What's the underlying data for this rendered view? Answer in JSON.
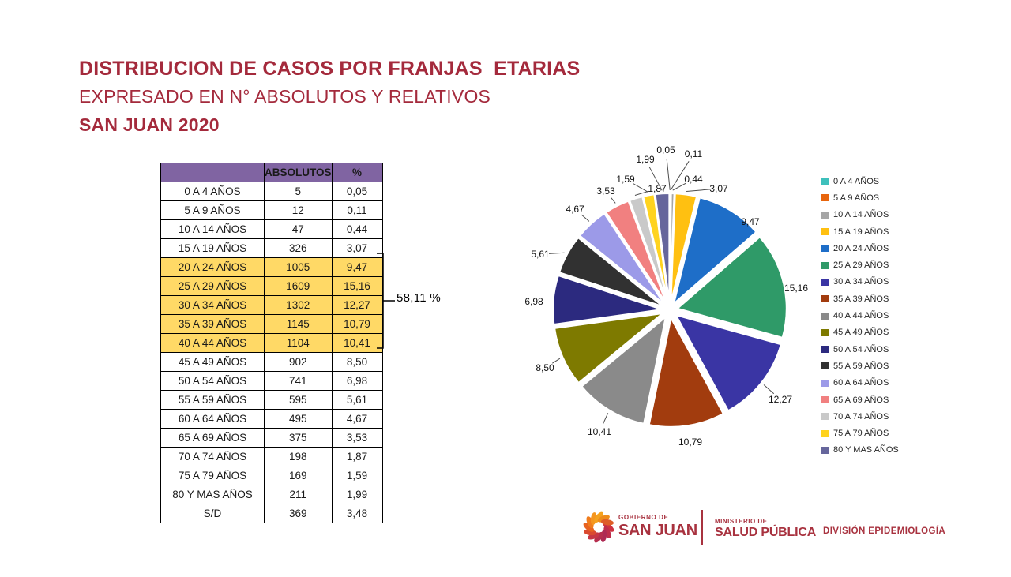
{
  "slide": {
    "title_line1": "DISTRIBUCION DE CASOS POR FRANJAS  ETARIAS",
    "title_line2": "EXPRESADO EN N° ABSOLUTOS Y RELATIVOS",
    "title_line3": "SAN JUAN 2020"
  },
  "table": {
    "headers": [
      "",
      "ABSOLUTOS",
      "%"
    ],
    "header_bg": "#8064A2",
    "highlight_bg": "#FFD966",
    "rows": [
      {
        "label": "0 A 4 AÑOS",
        "absolutos": "5",
        "pct": "0,05",
        "highlight": false
      },
      {
        "label": "5 A 9 AÑOS",
        "absolutos": "12",
        "pct": "0,11",
        "highlight": false
      },
      {
        "label": "10 A 14 AÑOS",
        "absolutos": "47",
        "pct": "0,44",
        "highlight": false
      },
      {
        "label": "15 A 19 AÑOS",
        "absolutos": "326",
        "pct": "3,07",
        "highlight": false
      },
      {
        "label": "20 A 24 AÑOS",
        "absolutos": "1005",
        "pct": "9,47",
        "highlight": true
      },
      {
        "label": "25 A 29 AÑOS",
        "absolutos": "1609",
        "pct": "15,16",
        "highlight": true
      },
      {
        "label": "30 A 34 AÑOS",
        "absolutos": "1302",
        "pct": "12,27",
        "highlight": true
      },
      {
        "label": "35 A 39 AÑOS",
        "absolutos": "1145",
        "pct": "10,79",
        "highlight": true
      },
      {
        "label": "40 A 44 AÑOS",
        "absolutos": "1104",
        "pct": "10,41",
        "highlight": true
      },
      {
        "label": "45 A 49 AÑOS",
        "absolutos": "902",
        "pct": "8,50",
        "highlight": false
      },
      {
        "label": "50 A 54 AÑOS",
        "absolutos": "741",
        "pct": "6,98",
        "highlight": false
      },
      {
        "label": "55 A 59 AÑOS",
        "absolutos": "595",
        "pct": "5,61",
        "highlight": false
      },
      {
        "label": "60 A 64 AÑOS",
        "absolutos": "495",
        "pct": "4,67",
        "highlight": false
      },
      {
        "label": "65 A 69 AÑOS",
        "absolutos": "375",
        "pct": "3,53",
        "highlight": false
      },
      {
        "label": "70 A 74 AÑOS",
        "absolutos": "198",
        "pct": "1,87",
        "highlight": false
      },
      {
        "label": "75 A 79 AÑOS",
        "absolutos": "169",
        "pct": "1,59",
        "highlight": false
      },
      {
        "label": "80 Y MAS AÑOS",
        "absolutos": "211",
        "pct": "1,99",
        "highlight": false
      },
      {
        "label": "S/D",
        "absolutos": "369",
        "pct": "3,48",
        "highlight": false
      }
    ]
  },
  "bracket": {
    "label": "58,11 %",
    "covers_rows": [
      "20 A 24 AÑOS",
      "25 A 29 AÑOS",
      "30 A 34 AÑOS",
      "35 A 39 AÑOS",
      "40 A 44 AÑOS"
    ]
  },
  "chart_data": {
    "type": "pie",
    "title": "",
    "categories": [
      "0 A 4 AÑOS",
      "5 A 9 AÑOS",
      "10 A 14 AÑOS",
      "15 A 19 AÑOS",
      "20 A 24 AÑOS",
      "25 A 29 AÑOS",
      "30 A 34 AÑOS",
      "35 A 39 AÑOS",
      "40 A 44 AÑOS",
      "45 A 49 AÑOS",
      "50 A 54 AÑOS",
      "55 A 59 AÑOS",
      "60 A 64 AÑOS",
      "65 A 69 AÑOS",
      "70 A 74 AÑOS",
      "75 A 79 AÑOS",
      "80 Y MAS AÑOS"
    ],
    "values": [
      0.05,
      0.11,
      0.44,
      3.07,
      9.47,
      15.16,
      12.27,
      10.79,
      10.41,
      8.5,
      6.98,
      5.61,
      4.67,
      3.53,
      1.87,
      1.59,
      1.99
    ],
    "labels": [
      "0,05",
      "0,11",
      "0,44",
      "3,07",
      "9,47",
      "15,16",
      "12,27",
      "10,79",
      "10,41",
      "8,50",
      "6,98",
      "5,61",
      "4,67",
      "3,53",
      "1,87",
      "1,59",
      "1,99"
    ],
    "colors": [
      "#3EC0BC",
      "#E8650D",
      "#A6A6A6",
      "#FFC011",
      "#1E6EC8",
      "#2F9A68",
      "#3A35A4",
      "#A23C0E",
      "#8A8A8A",
      "#7E7A00",
      "#2C2A7F",
      "#313131",
      "#9C9AE8",
      "#F18080",
      "#C9C9C9",
      "#FFD31E",
      "#66669C"
    ],
    "legend_position": "right",
    "start_angle": "top",
    "direction": "clockwise",
    "exploded": true
  },
  "footer": {
    "gobierno_small": "GOBIERNO DE",
    "gobierno_big": "SAN JUAN",
    "ministerio_small": "MINISTERIO DE",
    "ministerio_big": "SALUD PÚBLICA",
    "division": "DIVISIÓN EPIDEMIOLOGÍA",
    "brand_color": "#A8323F",
    "logo_colors": [
      "#CE3342",
      "#BE2E4C",
      "#AE2A54",
      "#B62E4E",
      "#C63644",
      "#DA4A30",
      "#E86320",
      "#F07C1C",
      "#F5961E",
      "#F4A21F",
      "#EE8C1C",
      "#DE5E28"
    ]
  },
  "theme": {
    "title_color": "#A42A3C",
    "background": "#FFFFFF"
  }
}
